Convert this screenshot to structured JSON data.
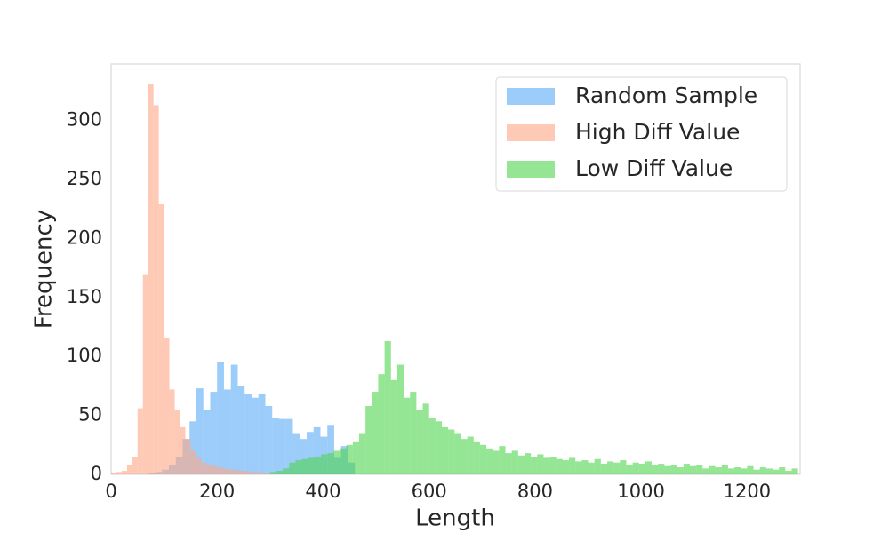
{
  "chart_data": {
    "type": "histogram",
    "xlabel": "Length",
    "ylabel": "Frequency",
    "xlim": [
      0,
      1300
    ],
    "ylim": [
      0,
      348
    ],
    "xticks": [
      0,
      200,
      400,
      600,
      800,
      1000,
      1200
    ],
    "yticks": [
      0,
      50,
      100,
      150,
      200,
      250,
      300
    ],
    "grid": false,
    "legend": "upper right",
    "opacity": 0.6,
    "series": [
      {
        "name": "Random Sample",
        "color": "#5aabf6",
        "bins": [
          70,
          83,
          96,
          109,
          122,
          135,
          148,
          161,
          174,
          187,
          200,
          213,
          226,
          239,
          252,
          265,
          278,
          291,
          304,
          317,
          330,
          343,
          356,
          369,
          382,
          395,
          408,
          421,
          434,
          447,
          460
        ],
        "values": [
          1,
          2,
          4,
          8,
          15,
          30,
          45,
          73,
          55,
          70,
          95,
          72,
          93,
          75,
          68,
          65,
          68,
          58,
          48,
          47,
          47,
          35,
          30,
          36,
          40,
          32,
          42,
          14,
          24,
          10
        ]
      },
      {
        "name": "High Diff Value",
        "color": "#ffa784",
        "bins": [
          0,
          10,
          20,
          30,
          40,
          50,
          60,
          70,
          80,
          90,
          100,
          110,
          120,
          130,
          140,
          150,
          160,
          170,
          180,
          190,
          200,
          210,
          220,
          230,
          240,
          250,
          260,
          270,
          280,
          290,
          300
        ],
        "values": [
          1,
          2,
          3,
          8,
          15,
          56,
          169,
          331,
          313,
          229,
          116,
          72,
          55,
          40,
          30,
          20,
          14,
          10,
          8,
          7,
          6,
          5,
          4,
          4,
          3,
          3,
          2,
          2,
          1,
          1
        ]
      },
      {
        "name": "Low Diff Value",
        "color": "#4cd44c",
        "bins": [
          300,
          312,
          324,
          336,
          348,
          360,
          372,
          384,
          396,
          408,
          420,
          432,
          444,
          456,
          468,
          480,
          492,
          504,
          516,
          528,
          540,
          552,
          564,
          576,
          588,
          600,
          612,
          624,
          636,
          648,
          660,
          672,
          684,
          696,
          708,
          720,
          732,
          744,
          756,
          768,
          780,
          792,
          804,
          816,
          828,
          840,
          852,
          864,
          876,
          888,
          900,
          912,
          924,
          936,
          948,
          960,
          972,
          984,
          996,
          1008,
          1020,
          1032,
          1044,
          1056,
          1068,
          1080,
          1092,
          1104,
          1116,
          1128,
          1140,
          1152,
          1164,
          1176,
          1188,
          1200,
          1212,
          1224,
          1236,
          1248,
          1260,
          1272,
          1284,
          1296
        ],
        "values": [
          2,
          3,
          5,
          10,
          12,
          13,
          14,
          15,
          17,
          18,
          20,
          22,
          25,
          28,
          35,
          58,
          70,
          85,
          113,
          80,
          93,
          65,
          70,
          55,
          60,
          48,
          45,
          40,
          38,
          35,
          30,
          32,
          28,
          25,
          22,
          20,
          24,
          18,
          20,
          16,
          18,
          15,
          17,
          14,
          15,
          13,
          12,
          14,
          11,
          12,
          10,
          13,
          9,
          11,
          10,
          12,
          8,
          10,
          9,
          11,
          8,
          9,
          7,
          8,
          6,
          9,
          7,
          8,
          5,
          7,
          6,
          8,
          5,
          6,
          5,
          7,
          4,
          6,
          5,
          4,
          6,
          3,
          5
        ]
      }
    ]
  }
}
